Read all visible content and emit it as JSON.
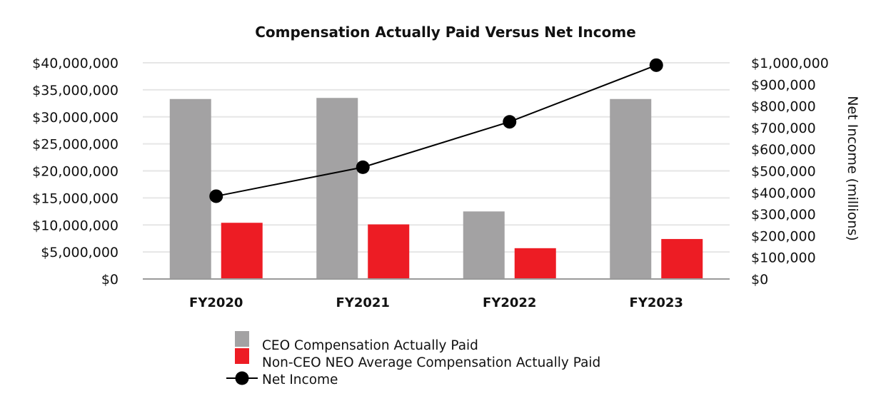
{
  "chart_data": {
    "type": "bar",
    "title": "Compensation Actually Paid Versus Net Income",
    "categories": [
      "FY2020",
      "FY2021",
      "FY2022",
      "FY2023"
    ],
    "series": [
      {
        "name": "CEO Compensation Actually Paid",
        "type": "bar",
        "axis": "left",
        "color": "#a3a2a3",
        "values": [
          33300000,
          33500000,
          12500000,
          33300000
        ]
      },
      {
        "name": "Non-CEO NEO Average Compensation Actually Paid",
        "type": "bar",
        "axis": "left",
        "color": "#ed1c24",
        "values": [
          10400000,
          10100000,
          5700000,
          7400000
        ]
      }
    ],
    "line_series": [
      {
        "name": "Net Income",
        "type": "line",
        "axis": "right",
        "color": "#000000",
        "values": [
          383000,
          517000,
          727000,
          989000
        ]
      }
    ],
    "y_left": {
      "min": 0,
      "max": 40000000,
      "ticks": [
        "$0",
        "$5,000,000",
        "$10,000,000",
        "$15,000,000",
        "$20,000,000",
        "$25,000,000",
        "$30,000,000",
        "$35,000,000",
        "$40,000,000"
      ]
    },
    "y_right": {
      "min": 0,
      "max": 1000000,
      "label": "Net Income (millions)",
      "ticks": [
        "$0",
        "$100,000",
        "$200,000",
        "$300,000",
        "$400,000",
        "$500,000",
        "$600,000",
        "$700,000",
        "$800,000",
        "$900,000",
        "$1,000,000"
      ]
    },
    "grid": true,
    "legend_position": "bottom"
  }
}
